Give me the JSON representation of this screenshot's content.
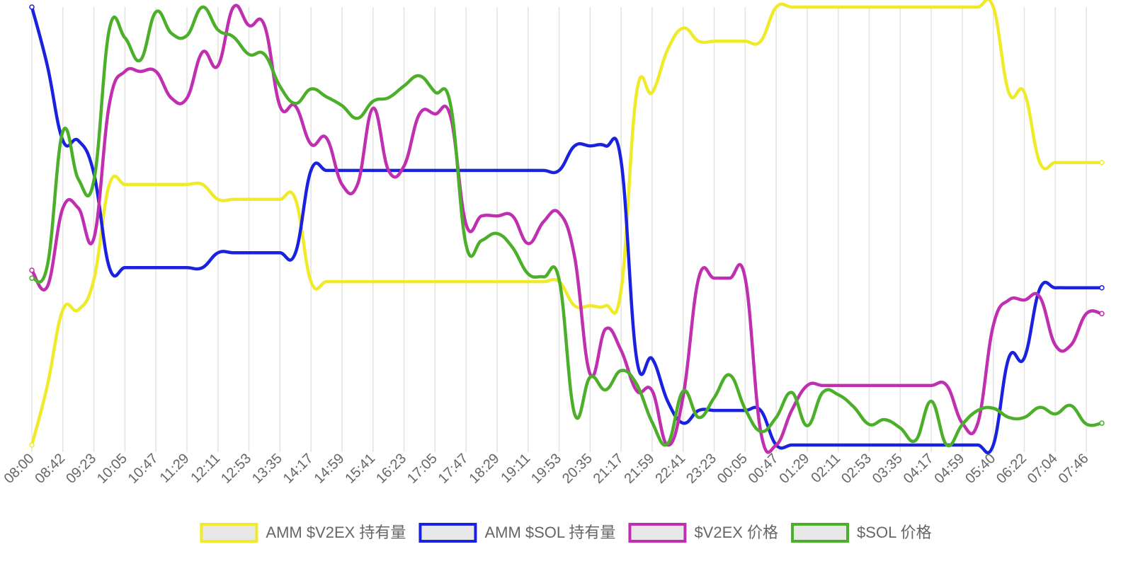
{
  "chart_data": {
    "type": "line",
    "categories": [
      "08:00",
      null,
      "08:42",
      null,
      "09:23",
      null,
      "10:05",
      null,
      "10:47",
      null,
      "11:29",
      null,
      "12:11",
      null,
      "12:53",
      null,
      "13:35",
      null,
      "14:17",
      null,
      "14:59",
      null,
      "15:41",
      null,
      "16:23",
      null,
      "17:05",
      null,
      "17:47",
      null,
      "18:29",
      null,
      "19:11",
      null,
      "19:53",
      null,
      "20:35",
      null,
      "21:17",
      null,
      "21:59",
      null,
      "22:41",
      null,
      "23:23",
      null,
      "00:05",
      null,
      "00:47",
      null,
      "01:29",
      null,
      "02:11",
      null,
      "02:53",
      null,
      "03:35",
      null,
      "04:17",
      null,
      "04:59",
      null,
      "05:40",
      null,
      "06:22",
      null,
      "07:04",
      null,
      "07:46",
      null
    ],
    "series": [
      {
        "name": "AMM $V2EX 持有量",
        "color": "#f0eb2a",
        "values": [
          0,
          13.6,
          30.9,
          30.9,
          37.8,
          59.5,
          59.5,
          59.5,
          59.5,
          59.5,
          59.5,
          59.5,
          56.1,
          56.1,
          56.1,
          56.1,
          56.1,
          56.1,
          37.3,
          37.3,
          37.3,
          37.3,
          37.3,
          37.3,
          37.3,
          37.3,
          37.3,
          37.3,
          37.3,
          37.3,
          37.3,
          37.3,
          37.3,
          37.3,
          37.3,
          31.8,
          31.8,
          31.8,
          35.4,
          80.5,
          80.5,
          90.3,
          95.2,
          92.2,
          92.2,
          92.2,
          92.2,
          92.2,
          100,
          100,
          100,
          100,
          100,
          100,
          100,
          100,
          100,
          100,
          100,
          100,
          100,
          100,
          100,
          80.5,
          80.5,
          64.5,
          64.5,
          64.5,
          64.5,
          64.5
        ]
      },
      {
        "name": "AMM $SOL 持有量",
        "color": "#1a22e0",
        "values": [
          100,
          86.6,
          69.5,
          69.5,
          62,
          40.5,
          40.5,
          40.5,
          40.5,
          40.5,
          40.5,
          40.5,
          43.9,
          43.9,
          43.9,
          43.9,
          43.9,
          43.9,
          62.7,
          62.7,
          62.7,
          62.7,
          62.7,
          62.7,
          62.7,
          62.7,
          62.7,
          62.7,
          62.7,
          62.7,
          62.7,
          62.7,
          62.7,
          62.7,
          62.7,
          68.3,
          68.3,
          68.3,
          64.8,
          19.7,
          19.7,
          10,
          5,
          7.9,
          7.9,
          7.9,
          7.9,
          7.9,
          0,
          0,
          0,
          0,
          0,
          0,
          0,
          0,
          0,
          0,
          0,
          0,
          0,
          0,
          0,
          19.9,
          19.9,
          35.7,
          35.9,
          35.9,
          35.9,
          35.9
        ]
      },
      {
        "name": "$V2EX 价格",
        "color": "#c02fb0",
        "values": [
          39.9,
          36.2,
          54.1,
          54.1,
          47.2,
          77.9,
          85.3,
          85.3,
          85.3,
          79.2,
          79.2,
          89.7,
          86.6,
          100,
          95.8,
          95.8,
          77.4,
          77.4,
          68.7,
          70.1,
          59.5,
          59.5,
          76.9,
          62.7,
          63.7,
          75.6,
          75.6,
          75,
          50.4,
          52.3,
          52.3,
          52.3,
          46,
          51,
          53,
          43,
          16.2,
          26.5,
          21.6,
          12.4,
          12.4,
          0,
          11.1,
          38.1,
          38.1,
          38.1,
          38.1,
          3.1,
          0,
          7.9,
          13.6,
          13.6,
          13.6,
          13.6,
          13.6,
          13.6,
          13.6,
          13.6,
          13.6,
          13.6,
          5,
          5,
          27.3,
          33.1,
          33.1,
          33.8,
          22.8,
          22.8,
          30,
          30
        ]
      },
      {
        "name": "$SOL 价格",
        "color": "#4caf2a",
        "values": [
          38.1,
          41,
          71.6,
          60.7,
          60.4,
          95,
          93,
          87.9,
          98.9,
          94,
          93.5,
          100,
          94.8,
          93.2,
          89.2,
          89.2,
          81.9,
          78,
          81.3,
          79.5,
          77.5,
          74.6,
          78.5,
          79.3,
          82,
          84.3,
          80.6,
          77.7,
          45.7,
          46.7,
          48.3,
          45.1,
          39.1,
          38.4,
          37.8,
          7.1,
          15.5,
          12.6,
          17,
          13.9,
          5.2,
          0.3,
          12.3,
          6.3,
          10.8,
          16,
          8.2,
          3.1,
          6.3,
          12,
          4.4,
          12,
          11.5,
          8.7,
          4.7,
          5.8,
          3.9,
          1.1,
          10,
          0,
          4.7,
          7.9,
          8.4,
          6.3,
          6.3,
          8.6,
          7.1,
          9,
          4.8,
          5
        ]
      }
    ],
    "ylim": [
      0,
      100
    ],
    "grid": true,
    "legend": "bottom"
  }
}
